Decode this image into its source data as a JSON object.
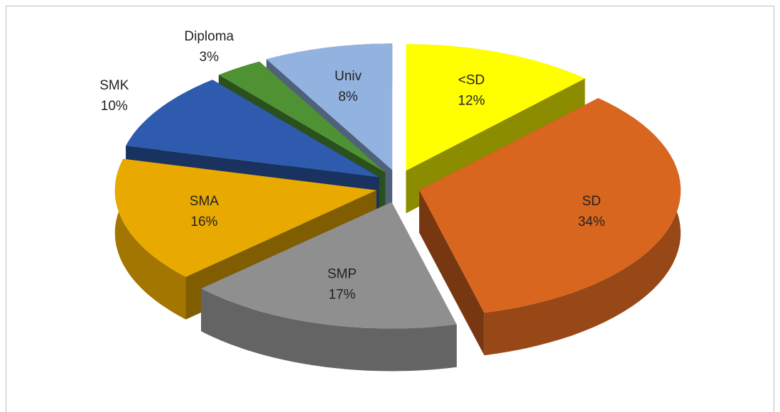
{
  "chart_data": {
    "type": "pie",
    "categories": [
      "<SD",
      "SD",
      "SMP",
      "SMA",
      "SMK",
      "Diploma",
      "Univ"
    ],
    "values": [
      12,
      34,
      17,
      16,
      10,
      3,
      8
    ],
    "value_labels": [
      "12%",
      "34%",
      "17%",
      "16%",
      "10%",
      "3%",
      "8%"
    ],
    "colors": [
      "#ffff00",
      "#d9661f",
      "#8f8f8f",
      "#e8a900",
      "#2e5bad",
      "#4f9234",
      "#92b3df"
    ]
  }
}
